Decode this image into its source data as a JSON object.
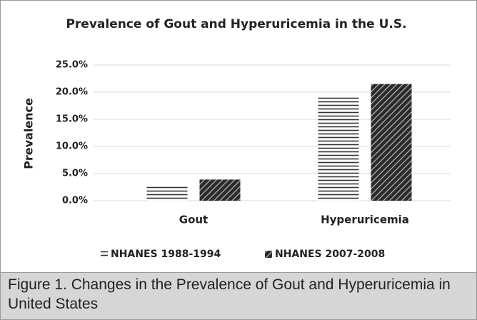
{
  "chart_data": {
    "type": "bar",
    "title": "Prevalence of Gout and Hyperuricemia in the U.S.",
    "y_label": "Prevalence",
    "categories": [
      "Gout",
      "Hyperuricemia"
    ],
    "series": [
      {
        "name": "NHANES 1988-1994",
        "color": "#333333",
        "hatch": "horizontal",
        "values": [
          2.7,
          19.1
        ]
      },
      {
        "name": "NHANES 2007-2008",
        "color": "#2b2b2b",
        "hatch": "diagonal",
        "values": [
          3.9,
          21.5
        ]
      }
    ],
    "ylim": [
      0,
      25
    ],
    "yticks": [
      {
        "value": 0,
        "label": "0.0%"
      },
      {
        "value": 5,
        "label": "5.0%"
      },
      {
        "value": 10,
        "label": "10.0%"
      },
      {
        "value": 15,
        "label": "15.0%"
      },
      {
        "value": 20,
        "label": "20.0%"
      },
      {
        "value": 25,
        "label": "25.0%"
      }
    ],
    "grid": true,
    "legend": "bottom"
  },
  "caption": "Figure 1. Changes in the Prevalence of Gout and Hyperuricemia in United States"
}
